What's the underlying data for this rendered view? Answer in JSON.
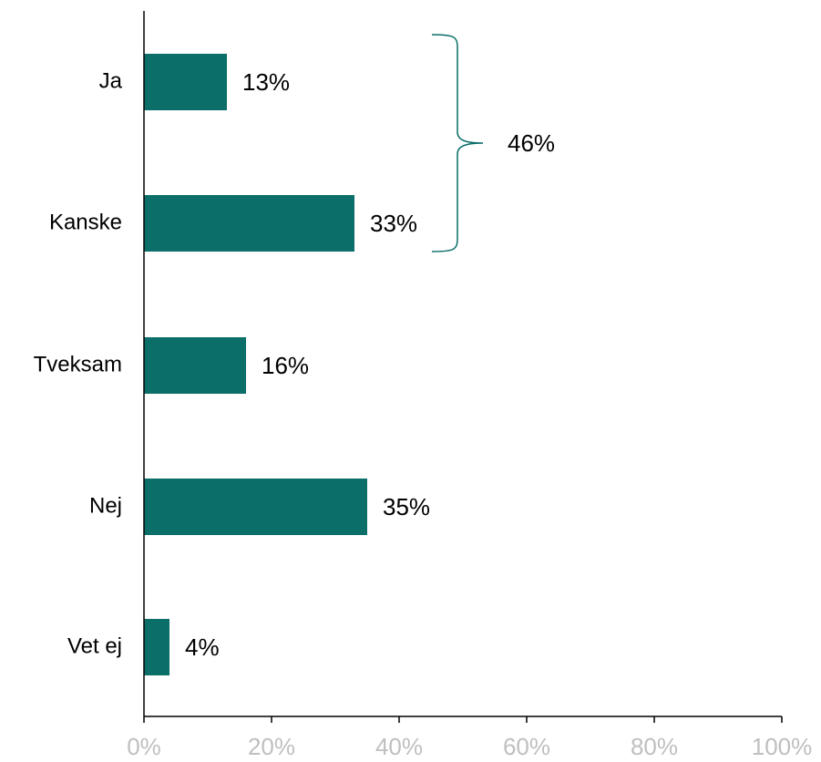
{
  "chart_data": {
    "type": "bar",
    "orientation": "horizontal",
    "categories": [
      "Ja",
      "Kanske",
      "Tveksam",
      "Nej",
      "Vet ej"
    ],
    "values": [
      13,
      33,
      16,
      35,
      4
    ],
    "value_labels": [
      "13%",
      "33%",
      "16%",
      "35%",
      "4%"
    ],
    "xlim": [
      0,
      100
    ],
    "xticks": [
      0,
      20,
      40,
      60,
      80,
      100
    ],
    "xtick_labels": [
      "0%",
      "20%",
      "40%",
      "60%",
      "80%",
      "100%"
    ],
    "grid": false,
    "title": "",
    "xlabel": "",
    "ylabel": "",
    "bar_color": "#0b6e69",
    "bracket": {
      "spans_categories": [
        "Ja",
        "Kanske"
      ],
      "value": 46,
      "label": "46%",
      "color": "#0b6e69"
    }
  },
  "colors": {
    "bar": "#0b6e69",
    "tick_text": "#bfbfbf",
    "axis": "#000000",
    "text": "#000000"
  }
}
